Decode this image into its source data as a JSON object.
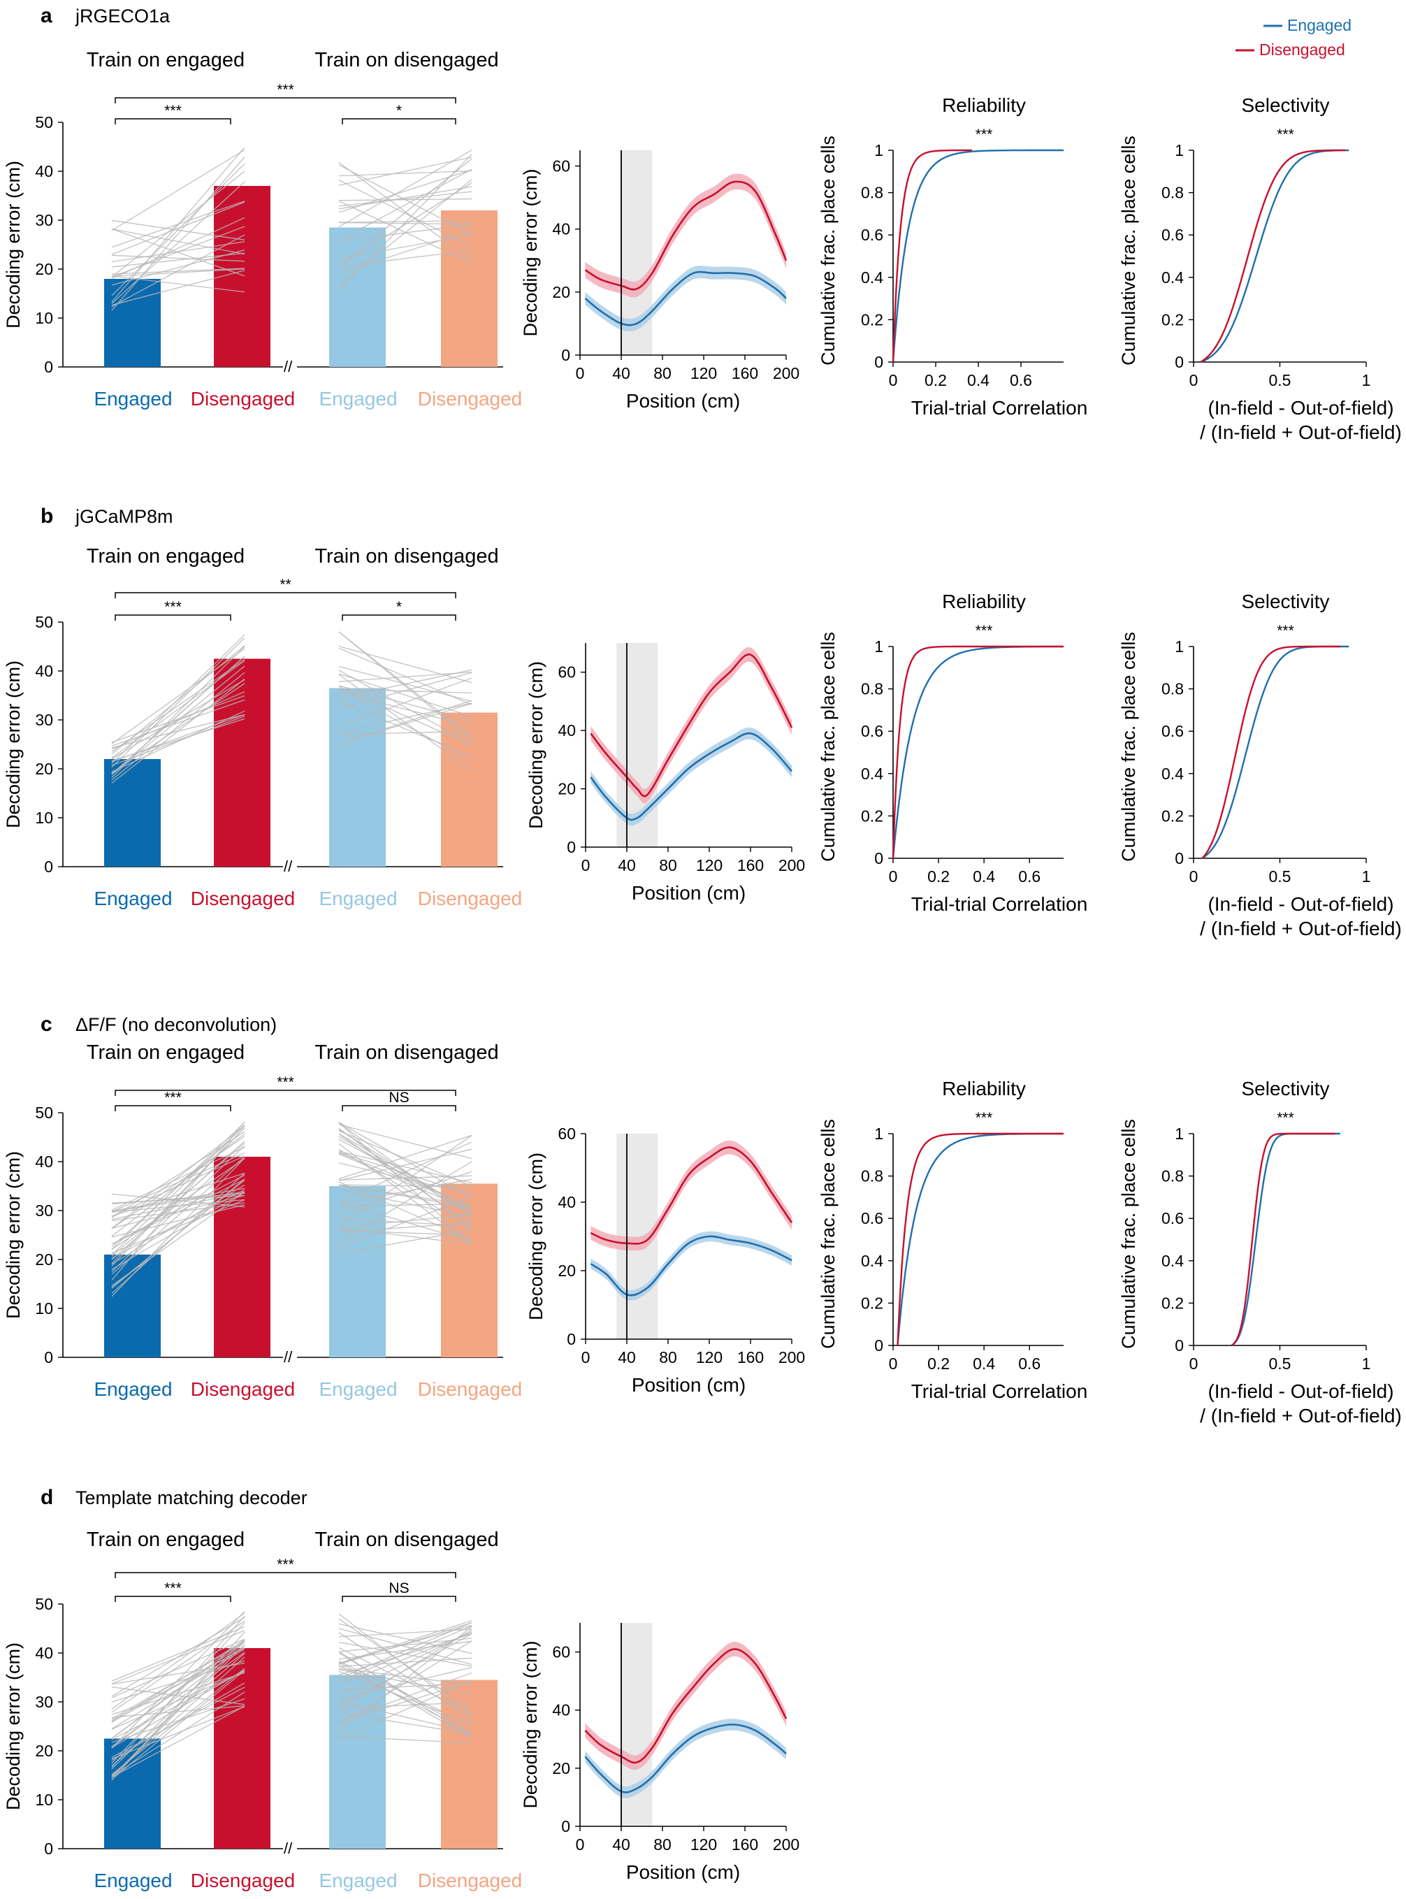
{
  "legend": {
    "items": [
      {
        "label": "Engaged",
        "color": "#1f6fad"
      },
      {
        "label": "Disengaged",
        "color": "#c8102e"
      }
    ]
  },
  "colors": {
    "engaged": "#0b6aad",
    "disengaged": "#c8102e",
    "engaged_light": "#95c8e2",
    "disengaged_light": "#f4a582",
    "engaged_line": "#1f6fad",
    "disengaged_line": "#c8102e",
    "paired_line": "#b8b8b8",
    "highlight": "#e9e9e9"
  },
  "chart_data": [
    {
      "panel": "a",
      "title": "jRGECO1a",
      "bar": {
        "type": "bar",
        "ylabel": "Decoding error (cm)",
        "ylim": [
          0,
          50
        ],
        "yticks": [
          0,
          10,
          20,
          30,
          40,
          50
        ],
        "group_labels": [
          "Train on engaged",
          "Train on disengaged"
        ],
        "categories": [
          "Engaged",
          "Disengaged",
          "Engaged",
          "Disengaged"
        ],
        "values": [
          18,
          37,
          28.5,
          32
        ],
        "sig": [
          {
            "label": "***",
            "from": 0,
            "to": 1
          },
          {
            "label": "*",
            "from": 2,
            "to": 3
          },
          {
            "label": "***",
            "from": 0,
            "to": 3
          }
        ],
        "paired": {
          "left_range": [
            11,
            30
          ],
          "right_range": [
            14,
            47
          ],
          "n": 22
        }
      },
      "line": {
        "type": "line",
        "xlabel": "Position (cm)",
        "ylabel": "Decoding error (cm)",
        "xlim": [
          0,
          200
        ],
        "ylim": [
          0,
          65
        ],
        "xticks": [
          0,
          40,
          80,
          120,
          160,
          200
        ],
        "yticks": [
          0,
          20,
          40,
          60
        ],
        "marker_x": 40,
        "highlight": [
          40,
          70
        ],
        "x": [
          5,
          20,
          40,
          55,
          70,
          90,
          110,
          130,
          150,
          170,
          190,
          200
        ],
        "series": [
          {
            "name": "Engaged",
            "values": [
              18,
              14,
              10,
              10,
              14,
              21,
              26,
              26,
              26,
              25,
              21,
              18
            ],
            "band": 2
          },
          {
            "name": "Disengaged",
            "values": [
              27,
              24,
              22,
              21,
              26,
              38,
              47,
              51,
              55,
              52,
              38,
              30
            ],
            "band": 2.5
          }
        ]
      },
      "reliability": {
        "type": "line",
        "title": "Reliability",
        "sig": "***",
        "xlabel": "Trial-trial Correlation",
        "ylabel": "Cumulative frac. place cells",
        "xlim": [
          0,
          0.8
        ],
        "ylim": [
          0,
          1
        ],
        "xticks": [
          0,
          0.2,
          0.4,
          0.6
        ],
        "yticks": [
          0,
          0.2,
          0.4,
          0.6,
          0.8,
          1
        ],
        "series": [
          {
            "name": "Engaged",
            "x0": 0,
            "scale": 0.072,
            "xmax": 0.8
          },
          {
            "name": "Disengaged",
            "x0": 0,
            "scale": 0.035,
            "xmax": 0.37
          }
        ]
      },
      "selectivity": {
        "type": "line",
        "title": "Selectivity",
        "sig": "***",
        "xlabel": "(In-field - Out-of-field)",
        "xlabel2": "/ (In-field + Out-of-field)",
        "ylabel": "Cumulative frac. place cells",
        "xlim": [
          0,
          1
        ],
        "ylim": [
          0,
          1
        ],
        "xticks": [
          0,
          0.5,
          1
        ],
        "yticks": [
          0,
          0.2,
          0.4,
          0.6,
          0.8,
          1
        ],
        "series": [
          {
            "name": "Engaged",
            "mu": 0.36,
            "sd": 0.15,
            "xmin": 0.04,
            "xmax": 0.9
          },
          {
            "name": "Disengaged",
            "mu": 0.31,
            "sd": 0.14,
            "xmin": 0.04,
            "xmax": 0.88
          }
        ]
      }
    },
    {
      "panel": "b",
      "title": "jGCaMP8m",
      "bar": {
        "type": "bar",
        "ylabel": "Decoding error (cm)",
        "ylim": [
          0,
          50
        ],
        "yticks": [
          0,
          10,
          20,
          30,
          40,
          50
        ],
        "group_labels": [
          "Train on engaged",
          "Train on disengaged"
        ],
        "categories": [
          "Engaged",
          "Disengaged",
          "Engaged",
          "Disengaged"
        ],
        "values": [
          22,
          42.5,
          36.5,
          31.5
        ],
        "sig": [
          {
            "label": "***",
            "from": 0,
            "to": 1
          },
          {
            "label": "*",
            "from": 2,
            "to": 3
          },
          {
            "label": "**",
            "from": 0,
            "to": 3
          }
        ],
        "paired": {
          "left_range": [
            17,
            27
          ],
          "right_range": [
            30,
            48
          ],
          "n": 22
        }
      },
      "line": {
        "type": "line",
        "xlabel": "Position (cm)",
        "ylabel": "Decoding error (cm)",
        "xlim": [
          0,
          200
        ],
        "ylim": [
          0,
          70
        ],
        "xticks": [
          0,
          40,
          80,
          120,
          160,
          200
        ],
        "yticks": [
          0,
          20,
          40,
          60
        ],
        "marker_x": 40,
        "highlight": [
          30,
          70
        ],
        "x": [
          5,
          20,
          40,
          50,
          60,
          80,
          100,
          120,
          140,
          160,
          180,
          200
        ],
        "series": [
          {
            "name": "Engaged",
            "values": [
              24,
              17,
              10,
              10,
              13,
              20,
              27,
              32,
              36,
              39,
              34,
              26
            ],
            "band": 2
          },
          {
            "name": "Disengaged",
            "values": [
              39,
              32,
              24,
              20,
              18,
              30,
              42,
              53,
              60,
              66,
              55,
              41
            ],
            "band": 2.5
          }
        ]
      },
      "reliability": {
        "type": "line",
        "title": "Reliability",
        "sig": "***",
        "xlabel": "Trial-trial Correlation",
        "ylabel": "Cumulative frac. place cells",
        "xlim": [
          0,
          0.75
        ],
        "ylim": [
          0,
          1
        ],
        "xticks": [
          0,
          0.2,
          0.4,
          0.6
        ],
        "yticks": [
          0,
          0.2,
          0.4,
          0.6,
          0.8,
          1
        ],
        "series": [
          {
            "name": "Engaged",
            "x0": 0,
            "scale": 0.085,
            "xmax": 0.75
          },
          {
            "name": "Disengaged",
            "x0": 0,
            "scale": 0.03,
            "xmax": 0.75
          }
        ]
      },
      "selectivity": {
        "type": "line",
        "title": "Selectivity",
        "sig": "***",
        "xlabel": "(In-field - Out-of-field)",
        "xlabel2": "/ (In-field + Out-of-field)",
        "ylabel": "Cumulative frac. place cells",
        "xlim": [
          0,
          1
        ],
        "ylim": [
          0,
          1
        ],
        "xticks": [
          0,
          0.5,
          1
        ],
        "yticks": [
          0,
          0.2,
          0.4,
          0.6,
          0.8,
          1
        ],
        "series": [
          {
            "name": "Engaged",
            "mu": 0.3,
            "sd": 0.13,
            "xmin": 0.05,
            "xmax": 0.9
          },
          {
            "name": "Disengaged",
            "mu": 0.24,
            "sd": 0.11,
            "xmin": 0.05,
            "xmax": 0.85
          }
        ]
      }
    },
    {
      "panel": "c",
      "title": "ΔF/F (no deconvolution)",
      "bar": {
        "type": "bar",
        "ylabel": "Decoding error (cm)",
        "ylim": [
          0,
          50
        ],
        "yticks": [
          0,
          10,
          20,
          30,
          40,
          50
        ],
        "group_labels": [
          "Train on engaged",
          "Train on disengaged"
        ],
        "categories": [
          "Engaged",
          "Disengaged",
          "Engaged",
          "Disengaged"
        ],
        "values": [
          21,
          41,
          35,
          35.5
        ],
        "sig": [
          {
            "label": "***",
            "from": 0,
            "to": 1
          },
          {
            "label": "NS",
            "from": 2,
            "to": 3
          },
          {
            "label": "***",
            "from": 0,
            "to": 3
          }
        ],
        "paired": {
          "left_range": [
            12,
            34
          ],
          "right_range": [
            30,
            49
          ],
          "n": 40
        }
      },
      "line": {
        "type": "line",
        "xlabel": "Position (cm)",
        "ylabel": "Decoding error (cm)",
        "xlim": [
          0,
          200
        ],
        "ylim": [
          0,
          60
        ],
        "xticks": [
          0,
          40,
          80,
          120,
          160,
          200
        ],
        "yticks": [
          0,
          20,
          40,
          60
        ],
        "marker_x": 40,
        "highlight": [
          30,
          70
        ],
        "x": [
          5,
          20,
          40,
          60,
          80,
          100,
          120,
          140,
          160,
          180,
          200
        ],
        "series": [
          {
            "name": "Engaged",
            "values": [
              22,
              19,
              13,
              15,
              22,
              28,
              30,
              29,
              28,
              26,
              23
            ],
            "band": 1.5
          },
          {
            "name": "Disengaged",
            "values": [
              31,
              29,
              28,
              29,
              38,
              48,
              53,
              56,
              52,
              43,
              34
            ],
            "band": 2
          }
        ]
      },
      "reliability": {
        "type": "line",
        "title": "Reliability",
        "sig": "***",
        "xlabel": "Trial-trial Correlation",
        "ylabel": "Cumulative frac. place cells",
        "xlim": [
          0,
          0.75
        ],
        "ylim": [
          0,
          1
        ],
        "xticks": [
          0,
          0.2,
          0.4,
          0.6
        ],
        "yticks": [
          0,
          0.2,
          0.4,
          0.6,
          0.8,
          1
        ],
        "series": [
          {
            "name": "Engaged",
            "x0": 0.02,
            "scale": 0.08,
            "xmax": 0.75
          },
          {
            "name": "Disengaged",
            "x0": 0.02,
            "scale": 0.04,
            "xmax": 0.75
          }
        ]
      },
      "selectivity": {
        "type": "line",
        "title": "Selectivity",
        "sig": "***",
        "xlabel": "(In-field - Out-of-field)",
        "xlabel2": "/ (In-field + Out-of-field)",
        "ylabel": "Cumulative frac. place cells",
        "xlim": [
          0,
          1
        ],
        "ylim": [
          0,
          1
        ],
        "xticks": [
          0,
          0.5,
          1
        ],
        "yticks": [
          0,
          0.2,
          0.4,
          0.6,
          0.8,
          1
        ],
        "series": [
          {
            "name": "Engaged",
            "mu": 0.36,
            "sd": 0.06,
            "xmin": 0.22,
            "xmax": 0.85
          },
          {
            "name": "Disengaged",
            "mu": 0.34,
            "sd": 0.05,
            "xmin": 0.22,
            "xmax": 0.82
          }
        ]
      }
    },
    {
      "panel": "d",
      "title": "Template matching decoder",
      "bar": {
        "type": "bar",
        "ylabel": "Decoding error (cm)",
        "ylim": [
          0,
          50
        ],
        "yticks": [
          0,
          10,
          20,
          30,
          40,
          50
        ],
        "group_labels": [
          "Train on engaged",
          "Train on disengaged"
        ],
        "categories": [
          "Engaged",
          "Disengaged",
          "Engaged",
          "Disengaged"
        ],
        "values": [
          22.5,
          41,
          35.5,
          34.5
        ],
        "sig": [
          {
            "label": "***",
            "from": 0,
            "to": 1
          },
          {
            "label": "NS",
            "from": 2,
            "to": 3
          },
          {
            "label": "***",
            "from": 0,
            "to": 3
          }
        ],
        "paired": {
          "left_range": [
            14,
            35
          ],
          "right_range": [
            29,
            49
          ],
          "n": 40
        }
      },
      "line": {
        "type": "line",
        "xlabel": "Position (cm)",
        "ylabel": "Decoding error (cm)",
        "xlim": [
          0,
          200
        ],
        "ylim": [
          0,
          70
        ],
        "xticks": [
          0,
          40,
          80,
          120,
          160,
          200
        ],
        "yticks": [
          0,
          20,
          40,
          60
        ],
        "marker_x": 40,
        "highlight": [
          40,
          70
        ],
        "x": [
          5,
          20,
          40,
          55,
          70,
          90,
          110,
          130,
          150,
          170,
          190,
          200
        ],
        "series": [
          {
            "name": "Engaged",
            "values": [
              24,
              18,
              12,
              13,
              17,
              25,
              31,
              34,
              35,
              33,
              28,
              25
            ],
            "band": 2
          },
          {
            "name": "Disengaged",
            "values": [
              33,
              28,
              24,
              22,
              27,
              39,
              48,
              56,
              61,
              56,
              44,
              37
            ],
            "band": 2.5
          }
        ]
      }
    }
  ]
}
